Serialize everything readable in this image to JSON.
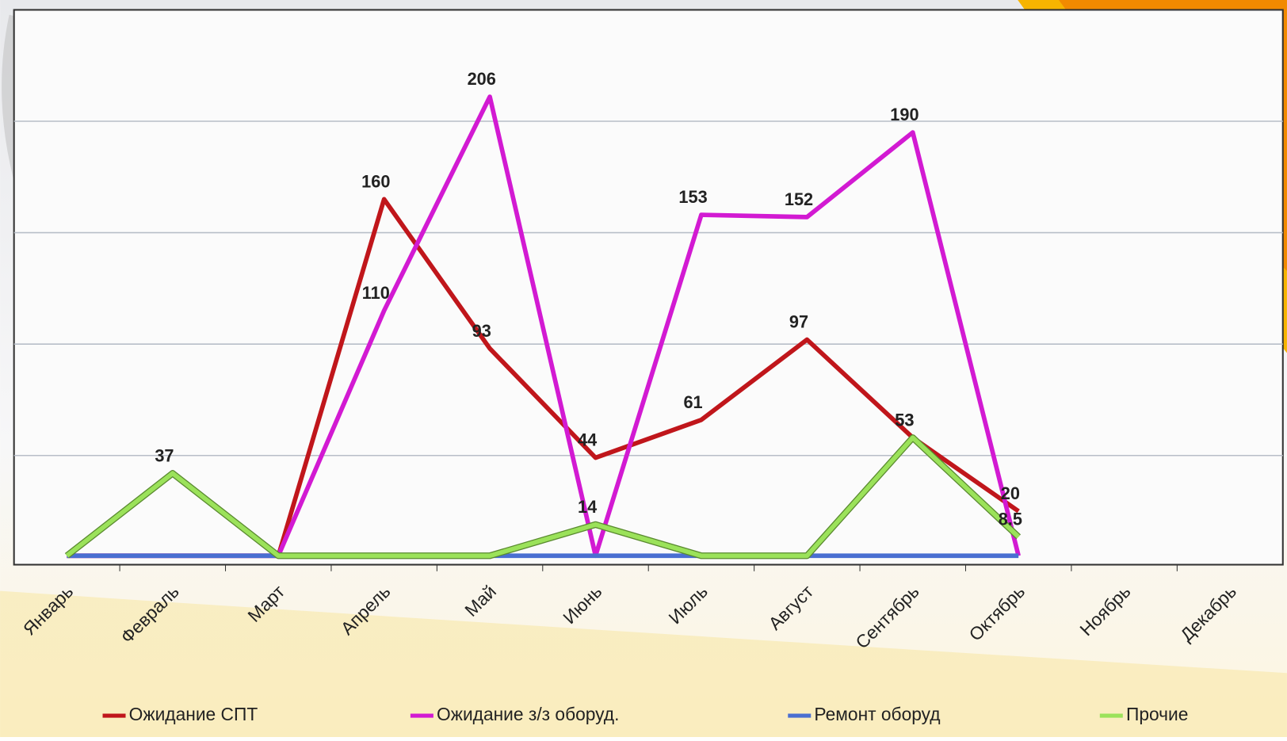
{
  "chart_data": {
    "type": "line",
    "categories": [
      "Январь",
      "Февраль",
      "Март",
      "Апрель",
      "Май",
      "Июнь",
      "Июль",
      "Август",
      "Сентябрь",
      "Октябрь",
      "Ноябрь",
      "Декабрь"
    ],
    "series": [
      {
        "name": "Ожидание СПТ",
        "color": "#c0161b",
        "values": [
          0,
          0,
          0,
          160,
          93,
          44,
          61,
          97,
          53,
          20,
          null,
          null
        ]
      },
      {
        "name": "Ожидание з/з оборуд.",
        "color": "#d21ad2",
        "values": [
          0,
          0,
          0,
          110,
          206,
          0,
          153,
          152,
          190,
          0,
          null,
          null
        ]
      },
      {
        "name": "Ремонт оборуд",
        "color": "#4a6fd1",
        "values": [
          0,
          0,
          0,
          0,
          0,
          0,
          0,
          0,
          0,
          0,
          null,
          null
        ]
      },
      {
        "name": "Прочие",
        "color": "#9be25a",
        "values": [
          0,
          37,
          0,
          0,
          0,
          14,
          0,
          0,
          53,
          8.5,
          null,
          null
        ]
      }
    ],
    "ylim": [
      -4,
      245
    ],
    "yticks": [
      45,
      95,
      145,
      195
    ],
    "grid": true
  }
}
